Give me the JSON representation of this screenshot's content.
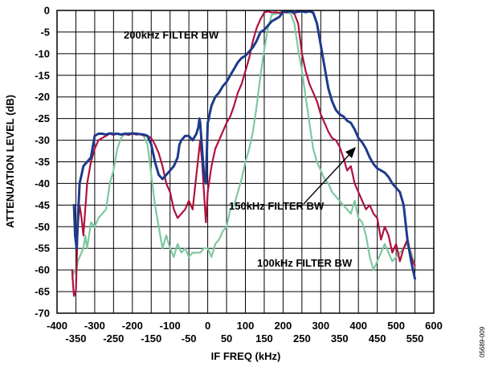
{
  "chart_data": {
    "type": "line",
    "xlabel": "IF FREQ (kHz)",
    "ylabel": "ATTENUATION LEVEL (dB)",
    "xlim": [
      -400,
      600
    ],
    "ylim": [
      -70,
      0
    ],
    "grid": true,
    "x_ticks_upper": [
      "-400",
      "-300",
      "-200",
      "-100",
      "0",
      "100",
      "200",
      "300",
      "400",
      "500",
      "600"
    ],
    "x_ticks_lower": [
      "-350",
      "-250",
      "-150",
      "-50",
      "50",
      "150",
      "250",
      "350",
      "450",
      "550"
    ],
    "y_ticks": [
      "0",
      "-5",
      "-10",
      "-15",
      "-20",
      "-25",
      "-30",
      "-35",
      "-40",
      "-45",
      "-50",
      "-55",
      "-60",
      "-65",
      "-70"
    ],
    "annotations": [
      {
        "text": "200kHz FILTER BW",
        "x": -100,
        "y": -6
      },
      {
        "text": "150kHz FILTER BW",
        "x": 150,
        "y": -46
      },
      {
        "text": "100kHz FILTER BW",
        "x": 310,
        "y": -59
      }
    ],
    "figure_id": "05689-009",
    "series": [
      {
        "color": "#1f3a8c",
        "x": [
          -355,
          -352,
          -348,
          -345,
          -340,
          -335,
          -330,
          -320,
          -310,
          -300,
          -290,
          -280,
          -270,
          -260,
          -250,
          -240,
          -230,
          -220,
          -210,
          -200,
          -190,
          -180,
          -170,
          -160,
          -150,
          -140,
          -130,
          -120,
          -110,
          -100,
          -90,
          -80,
          -75,
          -70,
          -60,
          -50,
          -40,
          -30,
          -25,
          -22,
          -20,
          -15,
          -10,
          -5,
          0,
          3,
          5,
          10,
          20,
          30,
          40,
          50,
          60,
          70,
          80,
          90,
          100,
          110,
          120,
          130,
          140,
          150,
          160,
          170,
          180,
          190,
          200,
          210,
          220,
          230,
          240,
          250,
          260,
          270,
          280,
          290,
          300,
          310,
          320,
          330,
          340,
          350,
          360,
          370,
          380,
          390,
          400,
          410,
          420,
          430,
          440,
          450,
          460,
          470,
          480,
          490,
          500,
          510,
          520,
          530,
          540,
          550
        ],
        "y": [
          -45,
          -52,
          -55,
          -49,
          -40,
          -38,
          -36,
          -35,
          -34,
          -29,
          -28.5,
          -28.5,
          -28.7,
          -28.4,
          -28.6,
          -28.5,
          -28.7,
          -28.5,
          -28.6,
          -28.4,
          -28.5,
          -28.6,
          -28.7,
          -29,
          -31,
          -35,
          -38,
          -39,
          -38,
          -37,
          -36,
          -34,
          -31,
          -30,
          -29,
          -29,
          -30,
          -28.5,
          -27,
          -25,
          -26,
          -32,
          -38,
          -40,
          -26,
          -25,
          -24,
          -22,
          -20,
          -19,
          -17.5,
          -16.5,
          -15,
          -13.5,
          -12,
          -11,
          -10.5,
          -9.5,
          -8.5,
          -7,
          -5,
          -4.5,
          -3.5,
          -2.5,
          -2,
          -1.5,
          -0.3,
          -0.3,
          -0.2,
          -0.5,
          -0.3,
          -0.2,
          -0.4,
          -0.2,
          -0.5,
          -3,
          -8,
          -13,
          -18,
          -21,
          -23,
          -24,
          -24.5,
          -25.5,
          -26,
          -27.5,
          -29.5,
          -30.5,
          -32,
          -34,
          -35.5,
          -36.5,
          -37,
          -37.5,
          -38.5,
          -40,
          -41,
          -42,
          -45,
          -53,
          -58,
          -62
        ]
      },
      {
        "color": "#b0123e",
        "x": [
          -360,
          -357,
          -355,
          -350,
          -345,
          -340,
          -335,
          -330,
          -320,
          -310,
          -300,
          -290,
          -280,
          -270,
          -260,
          -250,
          -240,
          -230,
          -220,
          -210,
          -200,
          -190,
          -180,
          -170,
          -160,
          -150,
          -140,
          -130,
          -120,
          -110,
          -100,
          -90,
          -80,
          -70,
          -60,
          -50,
          -40,
          -30,
          -20,
          -15,
          -10,
          -5,
          -2,
          0,
          5,
          10,
          20,
          30,
          40,
          50,
          60,
          70,
          80,
          90,
          100,
          110,
          120,
          130,
          140,
          150,
          160,
          170,
          180,
          190,
          200,
          210,
          220,
          230,
          240,
          250,
          260,
          270,
          280,
          290,
          300,
          310,
          320,
          330,
          340,
          350,
          360,
          370,
          380,
          390,
          400,
          410,
          420,
          430,
          440,
          450,
          460,
          470,
          480,
          490,
          500,
          510,
          520,
          530,
          540,
          550
        ],
        "y": [
          -60,
          -64,
          -66,
          -65,
          -50,
          -45,
          -48,
          -52,
          -40,
          -35,
          -32,
          -30,
          -29.5,
          -29,
          -28.5,
          -28.8,
          -28.4,
          -28.7,
          -28.6,
          -28.8,
          -28.5,
          -28.7,
          -28.6,
          -28.9,
          -29,
          -29.5,
          -31,
          -33,
          -36,
          -40,
          -42,
          -46,
          -48,
          -47,
          -46,
          -44,
          -46,
          -38,
          -30,
          -35,
          -42,
          -49,
          -45,
          -42,
          -39,
          -36,
          -32,
          -30,
          -28,
          -26,
          -24.5,
          -22,
          -19,
          -17,
          -14,
          -11,
          -7,
          -4,
          -2,
          -0.5,
          -0.2,
          -0.5,
          -0.4,
          -0.6,
          -0.3,
          -0.5,
          -0.2,
          -0.8,
          -3,
          -10,
          -14,
          -17,
          -19,
          -21,
          -24,
          -26,
          -28,
          -29.5,
          -30,
          -31.5,
          -34,
          -37,
          -36,
          -40,
          -42,
          -44,
          -46,
          -45,
          -47,
          -48,
          -53,
          -50,
          -52,
          -56,
          -54,
          -58,
          -55,
          -53,
          -57,
          -59
        ]
      },
      {
        "color": "#7ec8a0",
        "x": [
          -360,
          -355,
          -350,
          -345,
          -340,
          -335,
          -330,
          -325,
          -320,
          -310,
          -300,
          -290,
          -280,
          -270,
          -260,
          -250,
          -240,
          -230,
          -220,
          -210,
          -200,
          -190,
          -180,
          -170,
          -160,
          -150,
          -140,
          -130,
          -120,
          -110,
          -100,
          -90,
          -80,
          -70,
          -60,
          -50,
          -40,
          -30,
          -20,
          -10,
          0,
          10,
          20,
          30,
          40,
          50,
          60,
          70,
          80,
          90,
          100,
          110,
          120,
          130,
          140,
          150,
          160,
          170,
          180,
          190,
          200,
          210,
          220,
          230,
          240,
          250,
          260,
          270,
          280,
          290,
          300,
          310,
          320,
          330,
          340,
          350,
          360,
          370,
          380,
          390,
          400,
          410,
          420,
          430,
          440,
          450,
          460,
          470,
          480,
          490,
          500,
          510,
          520,
          530,
          540,
          550
        ],
        "y": [
          -62,
          -60,
          -61,
          -58,
          -57,
          -56,
          -55,
          -52,
          -55,
          -49,
          -50,
          -48,
          -47,
          -46,
          -40,
          -37,
          -32,
          -29.5,
          -28.5,
          -28.3,
          -28.5,
          -28.4,
          -28.6,
          -29,
          -31,
          -38,
          -45,
          -50,
          -55,
          -52,
          -55,
          -57,
          -54,
          -56,
          -55,
          -57,
          -56,
          -56,
          -56,
          -55,
          -55,
          -57,
          -54,
          -53,
          -51,
          -50,
          -46,
          -45,
          -42,
          -39,
          -35,
          -32,
          -28,
          -22,
          -15,
          -9,
          -4,
          -1,
          -0.8,
          -0.5,
          -0.6,
          -0.4,
          -0.7,
          -3,
          -9,
          -14,
          -20,
          -26,
          -32,
          -35,
          -37,
          -39,
          -40,
          -42,
          -43,
          -44,
          -45,
          -46,
          -47,
          -44,
          -48,
          -49,
          -52,
          -57,
          -60,
          -58,
          -56,
          -54,
          -56,
          -58,
          -57,
          -56,
          -55,
          -54,
          -56,
          -59
        ]
      }
    ]
  }
}
